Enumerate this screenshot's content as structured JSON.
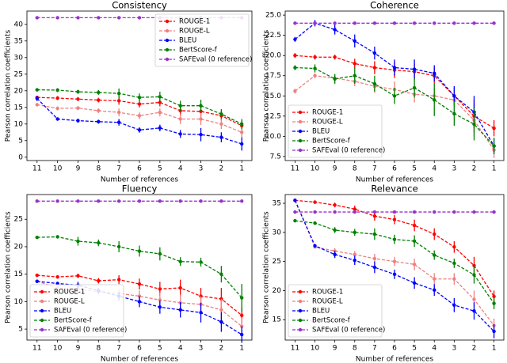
{
  "chart_data": [
    {
      "type": "errorbar",
      "title": "Consistency",
      "x_label": "Number of references",
      "y_label": "Pearson correlation coefficients",
      "categories": [
        "11",
        "10",
        "9",
        "8",
        "7",
        "6",
        "5",
        "4",
        "3",
        "2",
        "1"
      ],
      "ylim": [
        -1,
        44
      ],
      "yticks": [
        0,
        5,
        10,
        15,
        20,
        25,
        30,
        35,
        40
      ],
      "legend": "upper right",
      "linestyle": "dashed",
      "series": [
        {
          "name": "ROUGE-1",
          "color": "#ff0000",
          "values": [
            18,
            17.8,
            17.5,
            17.2,
            17,
            16,
            16.5,
            14,
            13.8,
            12.5,
            9.5
          ],
          "errors": [
            0.5,
            0.6,
            0.6,
            0.7,
            1.2,
            1,
            1.2,
            1.5,
            1.8,
            1.5,
            1.5
          ]
        },
        {
          "name": "ROUGE-L",
          "color": "#f08080",
          "values": [
            15.8,
            14.7,
            14.8,
            14,
            13.5,
            12.5,
            13.5,
            11.5,
            11.5,
            10,
            7.5
          ],
          "errors": [
            0.5,
            0.6,
            0.6,
            0.7,
            1.2,
            1,
            1.2,
            1.5,
            1.8,
            1.5,
            1.5
          ]
        },
        {
          "name": "BLEU",
          "color": "#0000ff",
          "values": [
            17.7,
            11.5,
            11,
            10.7,
            10.5,
            8.2,
            8.8,
            7,
            6.8,
            6,
            4
          ],
          "errors": [
            0.8,
            0.5,
            0.6,
            0.6,
            1,
            0.8,
            1,
            1.2,
            2,
            1.5,
            2
          ]
        },
        {
          "name": "BertScore-f",
          "color": "#008000",
          "values": [
            20.3,
            20.2,
            19.7,
            19.5,
            19.2,
            18,
            18.2,
            15.5,
            15.5,
            13,
            10
          ],
          "errors": [
            0.5,
            0.6,
            0.6,
            0.7,
            1.5,
            1.2,
            1.5,
            1.5,
            1.8,
            1.5,
            1.5
          ]
        },
        {
          "name": "SAFEval (0 reference)",
          "color": "#9932cc",
          "values": [
            42,
            42,
            42,
            42,
            42,
            42,
            42,
            42,
            42,
            42,
            42
          ]
        }
      ]
    },
    {
      "type": "errorbar",
      "title": "Coherence",
      "x_label": "Number of references",
      "y_label": "Pearson correlation coefficients",
      "categories": [
        "11",
        "10",
        "9",
        "8",
        "7",
        "6",
        "5",
        "4",
        "3",
        "2",
        "1"
      ],
      "ylim": [
        7,
        25.5
      ],
      "yticks": [
        7.5,
        {
          "value": 10,
          "label": "10.0"
        },
        12.5,
        {
          "value": 15,
          "label": "15.0"
        },
        17.5,
        {
          "value": 20,
          "label": "20.0"
        },
        22.5,
        {
          "value": 25,
          "label": "25.0"
        }
      ],
      "legend": "lower left",
      "linestyle": "dashed",
      "series": [
        {
          "name": "ROUGE-1",
          "color": "#ff0000",
          "values": [
            20,
            19.8,
            19.8,
            19,
            18.5,
            18.2,
            18,
            17.5,
            15,
            12.5,
            11
          ],
          "errors": [
            0.3,
            0.3,
            0.3,
            0.6,
            0.8,
            1,
            1,
            1,
            1,
            2,
            1
          ]
        },
        {
          "name": "ROUGE-L",
          "color": "#f08080",
          "values": [
            15.6,
            17.5,
            17.2,
            16.8,
            16.2,
            15.8,
            15.2,
            15,
            14.5,
            12,
            8.3
          ],
          "errors": [
            0.3,
            0.3,
            0.5,
            0.6,
            0.8,
            1,
            1,
            1,
            1.2,
            2,
            1
          ]
        },
        {
          "name": "BLEU",
          "color": "#0000ff",
          "values": [
            22,
            24,
            23.2,
            21.8,
            20.3,
            18.5,
            18.3,
            17.8,
            15,
            13,
            8.8
          ],
          "errors": [
            0.3,
            0.4,
            0.6,
            0.8,
            0.8,
            1,
            1.2,
            1,
            1.2,
            2,
            1
          ]
        },
        {
          "name": "BertScore-f",
          "color": "#008000",
          "values": [
            18.5,
            18.4,
            17.1,
            17.5,
            16.5,
            15,
            16,
            14.5,
            12.8,
            11.5,
            8.8
          ],
          "errors": [
            0.3,
            0.5,
            0.6,
            1,
            1,
            1,
            1.2,
            2,
            1.5,
            2,
            1
          ]
        },
        {
          "name": "SAFEval (0 reference)",
          "color": "#9932cc",
          "values": [
            24,
            24,
            24,
            24,
            24,
            24,
            24,
            24,
            24,
            24,
            24
          ]
        }
      ]
    },
    {
      "type": "errorbar",
      "title": "Fluency",
      "x_label": "Number of references",
      "y_label": "Pearson correlation coefficients",
      "categories": [
        "11",
        "10",
        "9",
        "8",
        "7",
        "6",
        "5",
        "4",
        "3",
        "2",
        "1"
      ],
      "ylim": [
        3,
        29.5
      ],
      "yticks": [
        5,
        10,
        15,
        20,
        25
      ],
      "legend": "lower left",
      "linestyle": "dashed",
      "series": [
        {
          "name": "ROUGE-1",
          "color": "#ff0000",
          "values": [
            14.8,
            14.5,
            14.7,
            13.8,
            14,
            13.2,
            12.3,
            12.5,
            11,
            10.5,
            7.5
          ],
          "errors": [
            0.3,
            0.3,
            0.4,
            0.5,
            0.8,
            1,
            1.3,
            1.5,
            1.5,
            2,
            1.5
          ]
        },
        {
          "name": "ROUGE-L",
          "color": "#f08080",
          "values": [
            13.7,
            12.5,
            12.3,
            11.8,
            11.5,
            11,
            10.3,
            9.8,
            9.5,
            8.5,
            5.5
          ],
          "errors": [
            0.3,
            0.3,
            0.4,
            0.5,
            0.8,
            1,
            1.3,
            1.5,
            1.5,
            2,
            1.5
          ]
        },
        {
          "name": "BLEU",
          "color": "#0000ff",
          "values": [
            13.7,
            13.3,
            13,
            12,
            11,
            10,
            9,
            8.5,
            8,
            6.3,
            4
          ],
          "errors": [
            0.3,
            0.3,
            0.6,
            0.5,
            0.8,
            1,
            1.2,
            1.4,
            1.8,
            1.8,
            1.5
          ]
        },
        {
          "name": "BertScore-f",
          "color": "#008000",
          "values": [
            21.7,
            21.8,
            21,
            20.7,
            20,
            19.2,
            18.7,
            17.3,
            17.2,
            15,
            10.7
          ],
          "errors": [
            0.2,
            0.3,
            0.8,
            0.6,
            1,
            1,
            1.2,
            0.8,
            0.8,
            1.5,
            2.5
          ]
        },
        {
          "name": "SAFEval (0 reference)",
          "color": "#9932cc",
          "values": [
            28.3,
            28.3,
            28.3,
            28.3,
            28.3,
            28.3,
            28.3,
            28.3,
            28.3,
            28.3,
            28.3
          ]
        }
      ]
    },
    {
      "type": "errorbar",
      "title": "Relevance",
      "x_label": "Number of references",
      "y_label": "Pearson correlation coefficients",
      "categories": [
        "11",
        "10",
        "9",
        "8",
        "7",
        "6",
        "5",
        "4",
        "3",
        "2",
        "1"
      ],
      "ylim": [
        11.5,
        36.5
      ],
      "yticks": [
        15,
        20,
        25,
        30,
        35
      ],
      "legend": "lower left",
      "linestyle": "dashed",
      "series": [
        {
          "name": "ROUGE-1",
          "color": "#ff0000",
          "values": [
            35.5,
            35.2,
            34.7,
            34,
            32.8,
            32.2,
            31.2,
            29.7,
            27.5,
            24.3,
            19
          ],
          "errors": [
            0.2,
            0.3,
            0.4,
            0.6,
            0.8,
            0.8,
            1,
            1,
            1,
            1.5,
            1
          ]
        },
        {
          "name": "ROUGE-L",
          "color": "#f08080",
          "values": [
            35.5,
            27.5,
            26.8,
            26.2,
            25.5,
            25,
            24.5,
            22,
            22,
            18.5,
            14
          ],
          "errors": [
            0.2,
            0.3,
            0.5,
            0.6,
            0.8,
            0.8,
            1,
            1,
            1,
            1.5,
            1.2
          ]
        },
        {
          "name": "BLEU",
          "color": "#0000ff",
          "values": [
            35.5,
            27.7,
            26.2,
            25.2,
            24,
            22.8,
            21.3,
            20.1,
            17.5,
            16.5,
            13
          ],
          "errors": [
            0.2,
            0.3,
            0.6,
            0.8,
            1,
            0.8,
            1,
            1,
            1.2,
            1.5,
            1.2
          ]
        },
        {
          "name": "BertScore-f",
          "color": "#008000",
          "values": [
            32,
            31.6,
            30.4,
            30,
            29.7,
            28.8,
            28.5,
            26.1,
            24.7,
            22.7,
            17.8
          ],
          "errors": [
            0.2,
            0.3,
            0.5,
            0.6,
            1,
            0.8,
            1,
            0.8,
            0.8,
            1.5,
            1
          ]
        },
        {
          "name": "SAFEval (0 reference)",
          "color": "#9932cc",
          "values": [
            33.5,
            33.5,
            33.5,
            33.5,
            33.5,
            33.5,
            33.5,
            33.5,
            33.5,
            33.5,
            33.5
          ]
        }
      ]
    }
  ]
}
